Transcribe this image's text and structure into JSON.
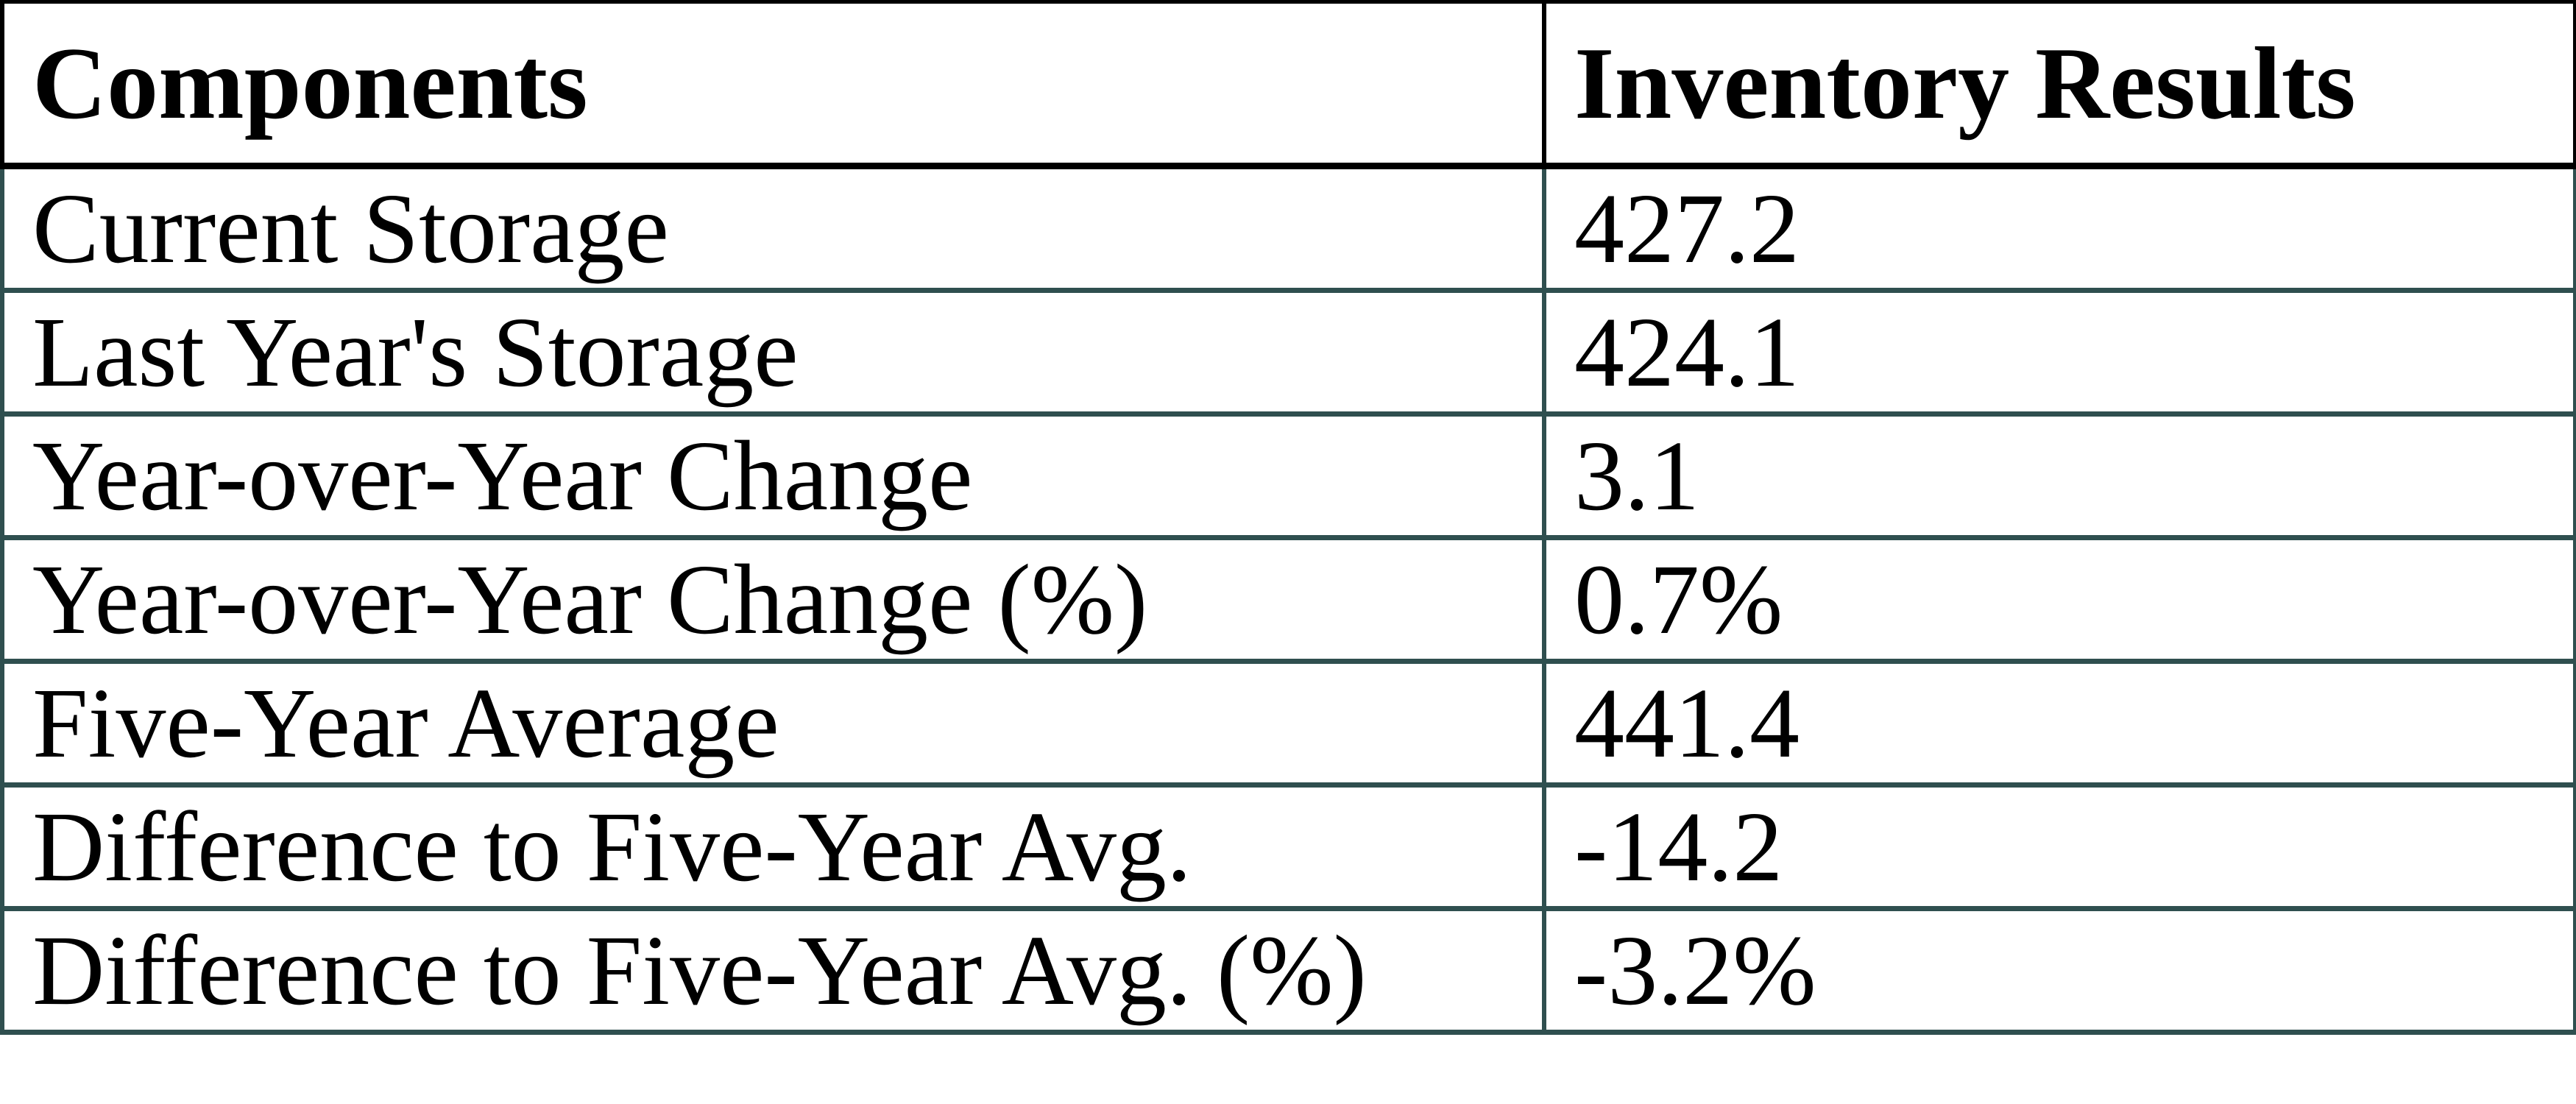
{
  "chart_data": {
    "type": "table",
    "columns": [
      "Components",
      "Inventory Results"
    ],
    "rows": [
      [
        "Current Storage",
        "427.2"
      ],
      [
        "Last Year's Storage",
        "424.1"
      ],
      [
        "Year-over-Year Change",
        "3.1"
      ],
      [
        "Year-over-Year Change (%)",
        "0.7%"
      ],
      [
        "Five-Year Average",
        "441.4"
      ],
      [
        "Difference to Five-Year Avg.",
        "-14.2"
      ],
      [
        "Difference to Five-Year Avg. (%)",
        "-3.2%"
      ]
    ]
  },
  "colors": {
    "header_border": "#000000",
    "grid_border": "#2F4F4F",
    "text": "#000000",
    "background": "#FFFFFF"
  }
}
